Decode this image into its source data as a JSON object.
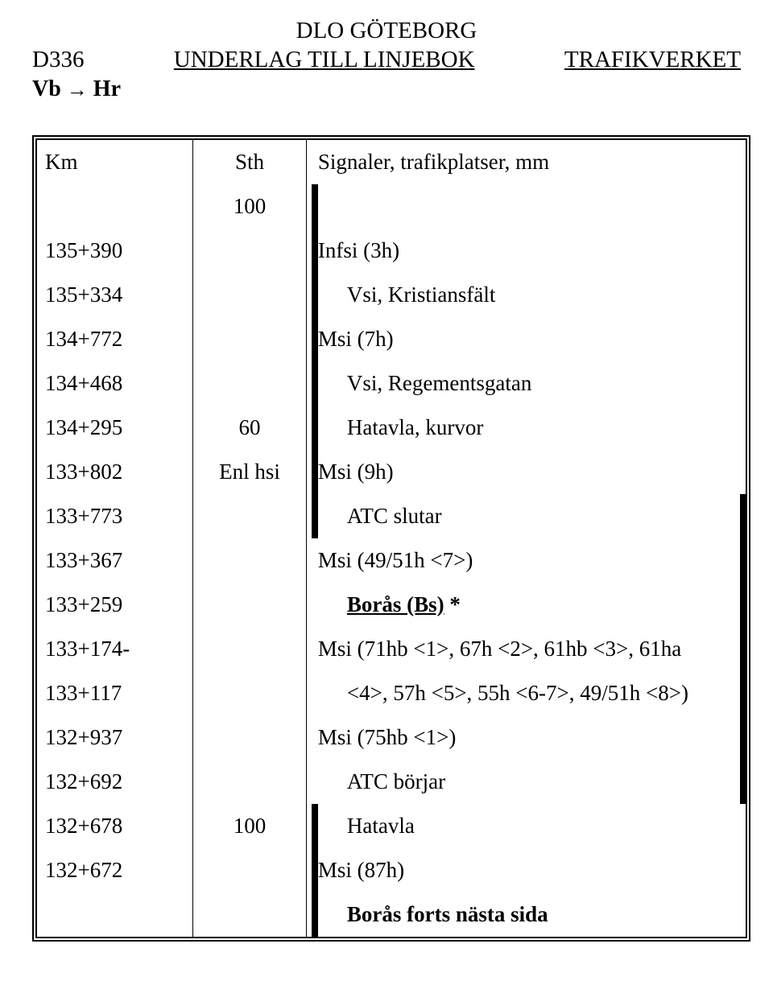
{
  "header": {
    "top_center": "DLO GÖTEBORG",
    "left": "D336",
    "center": "UNDERLAG TILL LINJEBOK",
    "right": "TRAFIKVERKET",
    "route_from": "Vb",
    "route_to": "Hr"
  },
  "columns": {
    "km": "Km",
    "sth": "Sth",
    "desc": "Signaler, trafikplatser, mm"
  },
  "rows": [
    {
      "km": "",
      "sth": "100",
      "desc": "",
      "indent": false,
      "bar": true,
      "rbar": false
    },
    {
      "km": "135+390",
      "sth": "",
      "desc": "Infsi (3h)",
      "indent": false,
      "bar": true,
      "rbar": false
    },
    {
      "km": "135+334",
      "sth": "",
      "desc": "Vsi, Kristiansfält",
      "indent": true,
      "bar": true,
      "rbar": false
    },
    {
      "km": "134+772",
      "sth": "",
      "desc": "Msi (7h)",
      "indent": false,
      "bar": true,
      "rbar": false
    },
    {
      "km": "134+468",
      "sth": "",
      "desc": "Vsi, Regementsgatan",
      "indent": true,
      "bar": true,
      "rbar": false
    },
    {
      "km": "134+295",
      "sth": "60",
      "desc": "Hatavla, kurvor",
      "indent": true,
      "bar": true,
      "rbar": false
    },
    {
      "km": "133+802",
      "sth": "Enl hsi",
      "desc": "Msi (9h)",
      "indent": false,
      "bar": true,
      "rbar": false
    },
    {
      "km": "133+773",
      "sth": "",
      "desc": "ATC slutar",
      "indent": true,
      "bar": true,
      "rbar": true
    },
    {
      "km": "133+367",
      "sth": "",
      "desc": "Msi (49/51h <7>)",
      "indent": false,
      "bar": false,
      "rbar": true
    },
    {
      "km": "133+259",
      "sth": "",
      "desc_boras_name": "Borås (Bs)",
      "desc_boras_suffix": " *",
      "boras": true,
      "indent": true,
      "bar": false,
      "rbar": true
    },
    {
      "km": "133+174-",
      "sth": "",
      "desc": "Msi (71hb <1>, 67h <2>, 61hb <3>, 61ha",
      "indent": false,
      "bar": false,
      "rbar": true
    },
    {
      "km": "133+117",
      "sth": "",
      "desc": "<4>, 57h <5>, 55h <6-7>, 49/51h <8>)",
      "indent": true,
      "bar": false,
      "rbar": true
    },
    {
      "km": "132+937",
      "sth": "",
      "desc": "Msi (75hb <1>)",
      "indent": false,
      "bar": false,
      "rbar": true
    },
    {
      "km": "132+692",
      "sth": "",
      "desc": "ATC börjar",
      "indent": true,
      "bar": false,
      "rbar": true
    },
    {
      "km": "132+678",
      "sth": "100",
      "desc": "Hatavla",
      "indent": true,
      "bar": true,
      "rbar": false
    },
    {
      "km": "132+672",
      "sth": "",
      "desc": "Msi (87h)",
      "indent": false,
      "bar": true,
      "rbar": false
    },
    {
      "km": "",
      "sth": "",
      "desc": "Borås forts nästa sida",
      "indent": true,
      "bar": true,
      "rbar": false,
      "bold": true
    }
  ]
}
